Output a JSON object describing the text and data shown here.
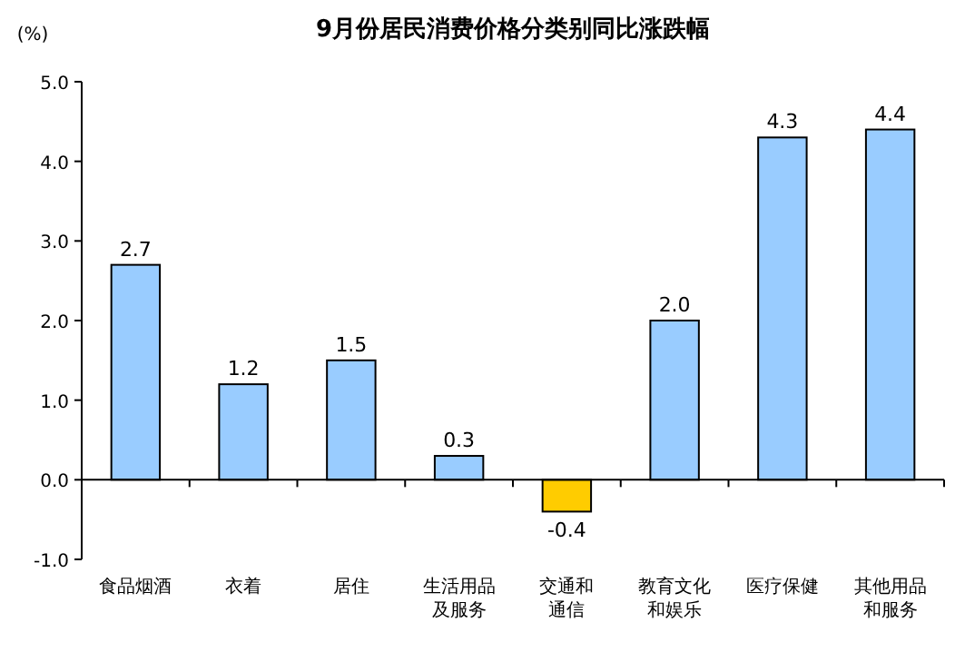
{
  "chart_data": {
    "type": "bar",
    "title": "9月份居民消费价格分类别同比涨跌幅",
    "ylabel": "(%)",
    "categories": [
      "食品烟酒",
      "衣着",
      "居住",
      "生活用品及服务",
      "交通和通信",
      "教育文化和娱乐",
      "医疗保健",
      "其他用品和服务"
    ],
    "values": [
      2.7,
      1.2,
      1.5,
      0.3,
      -0.4,
      2.0,
      4.3,
      4.4
    ],
    "colors": [
      "#99ccff",
      "#99ccff",
      "#99ccff",
      "#99ccff",
      "#ffcc00",
      "#99ccff",
      "#99ccff",
      "#99ccff"
    ],
    "ylim": [
      -1,
      5
    ],
    "yticks": [
      {
        "value": -1,
        "label": "-1.0"
      },
      {
        "value": 0,
        "label": "0.0"
      },
      {
        "value": 1,
        "label": "1.0"
      },
      {
        "value": 2,
        "label": "2.0"
      },
      {
        "value": 3,
        "label": "3.0"
      },
      {
        "value": 4,
        "label": "4.0"
      },
      {
        "value": 5,
        "label": "5.0"
      }
    ],
    "value_labels": [
      "2.7",
      "1.2",
      "1.5",
      "0.3",
      "-0.4",
      "2.0",
      "4.3",
      "4.4"
    ]
  }
}
